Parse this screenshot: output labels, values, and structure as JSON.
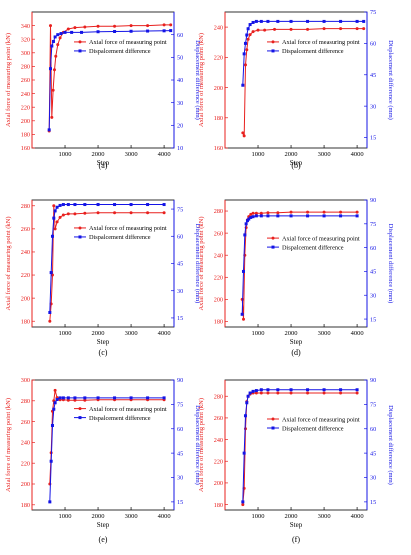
{
  "colors": {
    "axial": "#e8201e",
    "disp": "#1414e6",
    "axis_left": "#e8201e",
    "axis_right": "#1414e6",
    "frame": "#000000"
  },
  "chart_data": [
    {
      "panel": "(a)",
      "type": "line",
      "title": "",
      "xlabel": "Step",
      "ylabel": "Axial force of measuring point (kN)",
      "y2label": "Displacement difference (mm)",
      "xlim": [
        0,
        4300
      ],
      "xticks": [
        1000,
        2000,
        3000,
        4000
      ],
      "ylim": [
        160,
        360
      ],
      "yticks": [
        160,
        180,
        200,
        220,
        240,
        260,
        280,
        300,
        320,
        340
      ],
      "y2lim": [
        10,
        70
      ],
      "y2ticks": [
        10,
        20,
        30,
        40,
        50,
        60
      ],
      "legend": "upper-right",
      "series": [
        {
          "name": "Axial force of measuring point",
          "axis": "left",
          "color": "#e8201e",
          "x": [
            520,
            560,
            600,
            640,
            680,
            720,
            780,
            850,
            950,
            1100,
            1300,
            1600,
            2000,
            2500,
            3000,
            3500,
            4000,
            4200
          ],
          "y": [
            185,
            340,
            205,
            245,
            275,
            295,
            312,
            322,
            330,
            335,
            337,
            338,
            339,
            339,
            340,
            340,
            341,
            341
          ]
        },
        {
          "name": "Dispalcement difference",
          "axis": "right",
          "color": "#1414e6",
          "x": [
            520,
            560,
            600,
            650,
            700,
            780,
            880,
            1000,
            1200,
            1500,
            2000,
            2500,
            3000,
            3500,
            4000,
            4200
          ],
          "y": [
            18,
            45,
            55,
            57,
            59,
            60,
            60.5,
            61,
            61,
            61,
            61.3,
            61.4,
            61.5,
            61.6,
            61.7,
            61.8
          ]
        }
      ]
    },
    {
      "panel": "(b)",
      "type": "line",
      "title": "",
      "xlabel": "Step",
      "ylabel": "Axial force of measuring point (kN)",
      "y2label": "Displacement difference (mm)",
      "xlim": [
        0,
        4300
      ],
      "xticks": [
        1000,
        2000,
        3000,
        4000
      ],
      "ylim": [
        160,
        250
      ],
      "yticks": [
        160,
        180,
        200,
        220,
        240
      ],
      "y2lim": [
        10,
        75
      ],
      "y2ticks": [
        15,
        30,
        45,
        60,
        75
      ],
      "legend": "upper-right",
      "series": [
        {
          "name": "Axial force of measuring point",
          "axis": "left",
          "color": "#e8201e",
          "x": [
            540,
            580,
            620,
            660,
            700,
            760,
            850,
            1000,
            1200,
            1500,
            2000,
            2500,
            3000,
            3500,
            4000,
            4200
          ],
          "y": [
            170,
            168,
            215,
            225,
            232,
            235,
            237,
            238,
            238,
            238.5,
            238.5,
            238.5,
            239,
            239,
            239,
            239
          ]
        },
        {
          "name": "Dispalcement difference",
          "axis": "right",
          "color": "#1414e6",
          "x": [
            540,
            580,
            620,
            660,
            700,
            760,
            850,
            950,
            1100,
            1300,
            1600,
            2000,
            2500,
            3000,
            3500,
            4000,
            4200
          ],
          "y": [
            40,
            55,
            60,
            64,
            67,
            69,
            70,
            70.5,
            70.5,
            70.5,
            70.5,
            70.5,
            70.5,
            70.5,
            70.5,
            70.5,
            70.5
          ]
        }
      ]
    },
    {
      "panel": "(c)",
      "type": "line",
      "title": "",
      "xlabel": "Step",
      "ylabel": "Axial force of measuring point (kN)",
      "y2label": "Displacement difference (mm)",
      "xlim": [
        0,
        4300
      ],
      "xticks": [
        1000,
        2000,
        3000,
        4000
      ],
      "ylim": [
        175,
        285
      ],
      "yticks": [
        180,
        200,
        220,
        240,
        260,
        280
      ],
      "y2lim": [
        10,
        80
      ],
      "y2ticks": [
        15,
        30,
        45,
        60,
        75
      ],
      "legend": "upper-right",
      "series": [
        {
          "name": "Axial force of measuring point",
          "axis": "left",
          "color": "#e8201e",
          "x": [
            540,
            580,
            620,
            660,
            700,
            760,
            850,
            950,
            1100,
            1300,
            1600,
            2000,
            2500,
            3000,
            3500,
            4000
          ],
          "y": [
            180,
            195,
            220,
            280,
            260,
            266,
            270,
            272,
            273,
            273,
            273.5,
            274,
            274,
            274,
            274,
            274
          ]
        },
        {
          "name": "Dispalcement difference",
          "axis": "right",
          "color": "#1414e6",
          "x": [
            540,
            580,
            620,
            660,
            700,
            760,
            850,
            950,
            1100,
            1300,
            1600,
            2000,
            2500,
            3000,
            3500,
            4000
          ],
          "y": [
            18,
            40,
            60,
            70,
            74,
            76,
            77,
            77.5,
            77.5,
            77.5,
            77.5,
            77.5,
            77.5,
            77.5,
            77.5,
            77.5
          ]
        }
      ]
    },
    {
      "panel": "(d)",
      "type": "line",
      "title": "",
      "xlabel": "Step",
      "ylabel": "Axial force of measuring point (kN)",
      "y2label": "Displacement difference (mm)",
      "xlim": [
        0,
        4300
      ],
      "xticks": [
        1000,
        2000,
        3000,
        4000
      ],
      "ylim": [
        175,
        290
      ],
      "yticks": [
        180,
        200,
        220,
        240,
        260,
        280
      ],
      "y2lim": [
        10,
        90
      ],
      "y2ticks": [
        15,
        30,
        45,
        60,
        75,
        90
      ],
      "legend": "lower-right",
      "series": [
        {
          "name": "Axial force of measuring point",
          "axis": "left",
          "color": "#e8201e",
          "x": [
            520,
            560,
            600,
            640,
            680,
            720,
            780,
            850,
            950,
            1100,
            1300,
            1600,
            2000,
            2500,
            3000,
            3500,
            4000
          ],
          "y": [
            200,
            182,
            240,
            265,
            272,
            275,
            277,
            278,
            278,
            278,
            278.5,
            278.5,
            279,
            279,
            279,
            279,
            279
          ]
        },
        {
          "name": "Dispalcement difference",
          "axis": "right",
          "color": "#1414e6",
          "x": [
            520,
            560,
            600,
            640,
            680,
            720,
            780,
            850,
            950,
            1100,
            1300,
            1600,
            2000,
            2500,
            3000,
            3500,
            4000
          ],
          "y": [
            18,
            45,
            68,
            75,
            77,
            78,
            79,
            79.5,
            80,
            80,
            80,
            80,
            80,
            80,
            80,
            80,
            80
          ]
        }
      ]
    },
    {
      "panel": "(e)",
      "type": "line",
      "title": "",
      "xlabel": "Step",
      "ylabel": "Axial force of measuring point (kN)",
      "y2label": "Displacement difference (mm)",
      "xlim": [
        0,
        4300
      ],
      "xticks": [
        1000,
        2000,
        3000,
        4000
      ],
      "ylim": [
        175,
        300
      ],
      "yticks": [
        180,
        200,
        220,
        240,
        260,
        280,
        300
      ],
      "y2lim": [
        10,
        90
      ],
      "y2ticks": [
        15,
        30,
        45,
        60,
        75,
        90
      ],
      "legend": "upper-right",
      "series": [
        {
          "name": "Axial force of measuring point",
          "axis": "left",
          "color": "#e8201e",
          "x": [
            540,
            580,
            620,
            660,
            700,
            760,
            850,
            950,
            1100,
            1300,
            1600,
            2000,
            2500,
            3000,
            3500,
            4000
          ],
          "y": [
            200,
            230,
            270,
            280,
            290,
            283,
            281,
            281,
            280.5,
            280.5,
            280.5,
            281,
            281,
            281,
            281,
            281
          ]
        },
        {
          "name": "Dispalcement difference",
          "axis": "right",
          "color": "#1414e6",
          "x": [
            540,
            580,
            620,
            660,
            700,
            760,
            850,
            950,
            1100,
            1300,
            1600,
            2000,
            2500,
            3000,
            3500,
            4000
          ],
          "y": [
            15,
            40,
            62,
            72,
            76,
            78,
            79,
            79,
            79,
            79,
            79,
            79,
            79,
            79,
            79,
            79
          ]
        }
      ]
    },
    {
      "panel": "(f)",
      "type": "line",
      "title": "",
      "xlabel": "Step",
      "ylabel": "Axial force of measuring point (kN)",
      "y2label": "Displacement difference (mm)",
      "xlim": [
        0,
        4300
      ],
      "xticks": [
        1000,
        2000,
        3000,
        4000
      ],
      "ylim": [
        175,
        295
      ],
      "yticks": [
        180,
        200,
        220,
        240,
        260,
        280
      ],
      "y2lim": [
        10,
        90
      ],
      "y2ticks": [
        15,
        30,
        45,
        60,
        75,
        90
      ],
      "legend": "lower-right",
      "series": [
        {
          "name": "Axial force of measuring point",
          "axis": "left",
          "color": "#e8201e",
          "x": [
            540,
            580,
            620,
            660,
            700,
            760,
            850,
            950,
            1100,
            1300,
            1600,
            2000,
            2500,
            3000,
            3500,
            4000
          ],
          "y": [
            180,
            195,
            250,
            275,
            280,
            282,
            283,
            283,
            283,
            283,
            283,
            283,
            283,
            283,
            283,
            283
          ]
        },
        {
          "name": "Dispalcement difference",
          "axis": "right",
          "color": "#1414e6",
          "x": [
            540,
            580,
            620,
            660,
            700,
            760,
            850,
            950,
            1100,
            1300,
            1600,
            2000,
            2500,
            3000,
            3500,
            4000
          ],
          "y": [
            15,
            45,
            68,
            76,
            80,
            82,
            83,
            83.5,
            84,
            84,
            84,
            84,
            84,
            84,
            84,
            84
          ]
        }
      ]
    }
  ]
}
